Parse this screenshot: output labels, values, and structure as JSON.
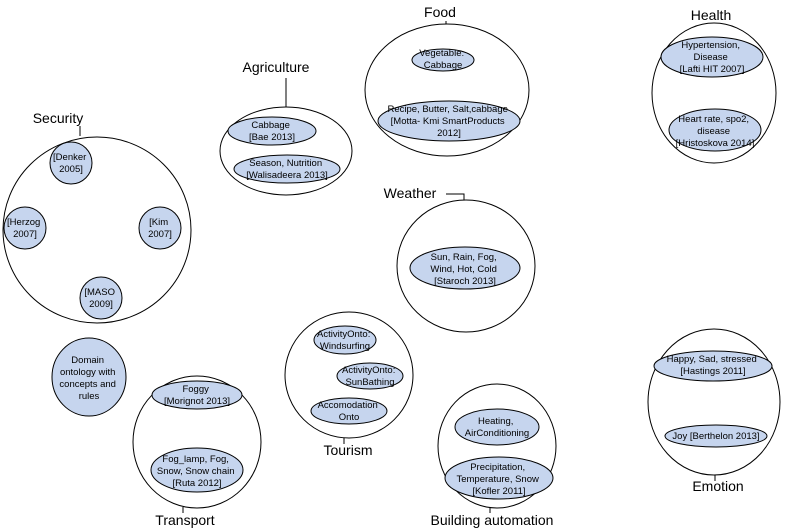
{
  "domains": {
    "agriculture": {
      "title": "Agriculture",
      "nodes": [
        {
          "lines": [
            "Cabbage",
            "[Bae 2013]"
          ]
        },
        {
          "lines": [
            "Season, Nutrition",
            "[Walisadeera 2013]"
          ]
        }
      ]
    },
    "food": {
      "title": "Food",
      "nodes": [
        {
          "lines": [
            "Vegetable:",
            "Cabbage"
          ]
        },
        {
          "lines": [
            "Recipe, Butter, Salt,cabbage",
            "[Motta- Kmi SmartProducts",
            "2012]"
          ]
        }
      ]
    },
    "health": {
      "title": "Health",
      "nodes": [
        {
          "lines": [
            "Hypertension,",
            "Disease",
            "[Lafti HIT 2007]"
          ]
        },
        {
          "lines": [
            "Heart rate, spo2,",
            "disease",
            "[Hristoskova 2014]"
          ]
        }
      ]
    },
    "security": {
      "title": "Security",
      "nodes": [
        {
          "lines": [
            "[Denker",
            "2005]"
          ]
        },
        {
          "lines": [
            "[Herzog",
            "2007]"
          ]
        },
        {
          "lines": [
            "[Kim",
            "2007]"
          ]
        },
        {
          "lines": [
            "[MASO",
            "2009]"
          ]
        }
      ]
    },
    "weather": {
      "title": "Weather",
      "nodes": [
        {
          "lines": [
            "Sun, Rain, Fog,",
            "Wind, Hot, Cold",
            "[Staroch 2013]"
          ]
        }
      ]
    },
    "tourism": {
      "title": "Tourism",
      "nodes": [
        {
          "lines": [
            "ActivityOnto:",
            "Windsurfing"
          ]
        },
        {
          "lines": [
            "ActivityOnto:",
            "SunBathing"
          ]
        },
        {
          "lines": [
            "Accomodation",
            "Onto"
          ]
        }
      ]
    },
    "transport": {
      "title": "Transport",
      "nodes": [
        {
          "lines": [
            "Foggy",
            "[Morignot 2013]"
          ]
        },
        {
          "lines": [
            "Fog_lamp, Fog,",
            "Snow, Snow chain",
            "[Ruta 2012]"
          ]
        }
      ]
    },
    "building": {
      "title": "Building automation",
      "nodes": [
        {
          "lines": [
            "Heating,",
            "AirConditioning"
          ]
        },
        {
          "lines": [
            "Precipitation,",
            "Temperature, Snow",
            "[Kofler 2011]"
          ]
        }
      ]
    },
    "emotion": {
      "title": "Emotion",
      "nodes": [
        {
          "lines": [
            "Happy, Sad, stressed",
            "[Hastings 2011]"
          ]
        },
        {
          "lines": [
            "Joy [Berthelon 2013]"
          ]
        }
      ]
    }
  },
  "legend": {
    "lines": [
      "Domain",
      "ontology with",
      "concepts and",
      "rules"
    ]
  }
}
